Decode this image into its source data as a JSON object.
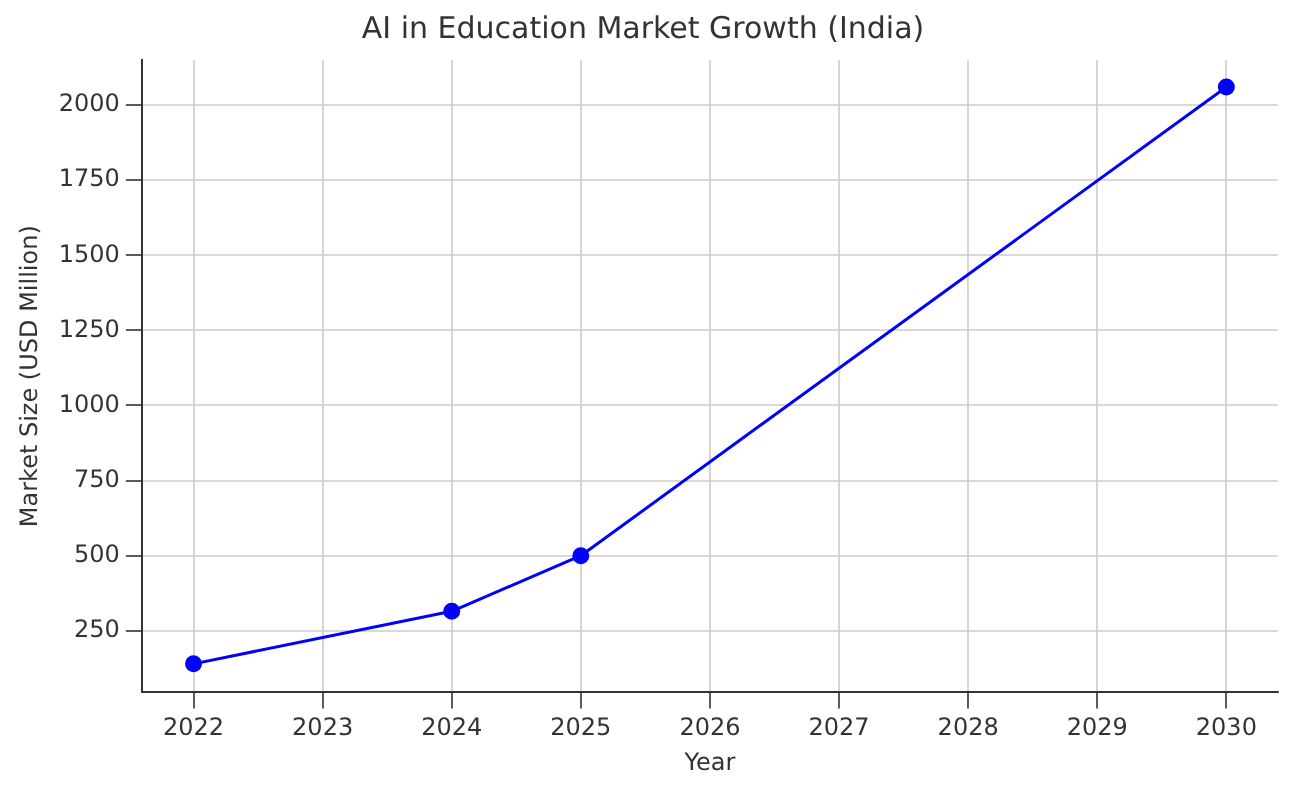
{
  "chart_data": {
    "type": "line",
    "title": "AI in Education Market Growth (India)",
    "xlabel": "Year",
    "ylabel": "Market Size (USD Million)",
    "x": [
      2022,
      2024,
      2025,
      2030
    ],
    "series": [
      {
        "color": "#0000ff",
        "values": [
          140,
          315,
          500,
          2060
        ]
      }
    ],
    "xlim": [
      2021.6,
      2030.4
    ],
    "xticks": [
      2022,
      2023,
      2024,
      2025,
      2026,
      2027,
      2028,
      2029,
      2030
    ],
    "ylim": [
      45,
      2150
    ],
    "yticks": [
      250,
      500,
      750,
      1000,
      1250,
      1500,
      1750,
      2000
    ],
    "grid": true,
    "marker": "circle",
    "line_style": "solid",
    "legend": false
  }
}
